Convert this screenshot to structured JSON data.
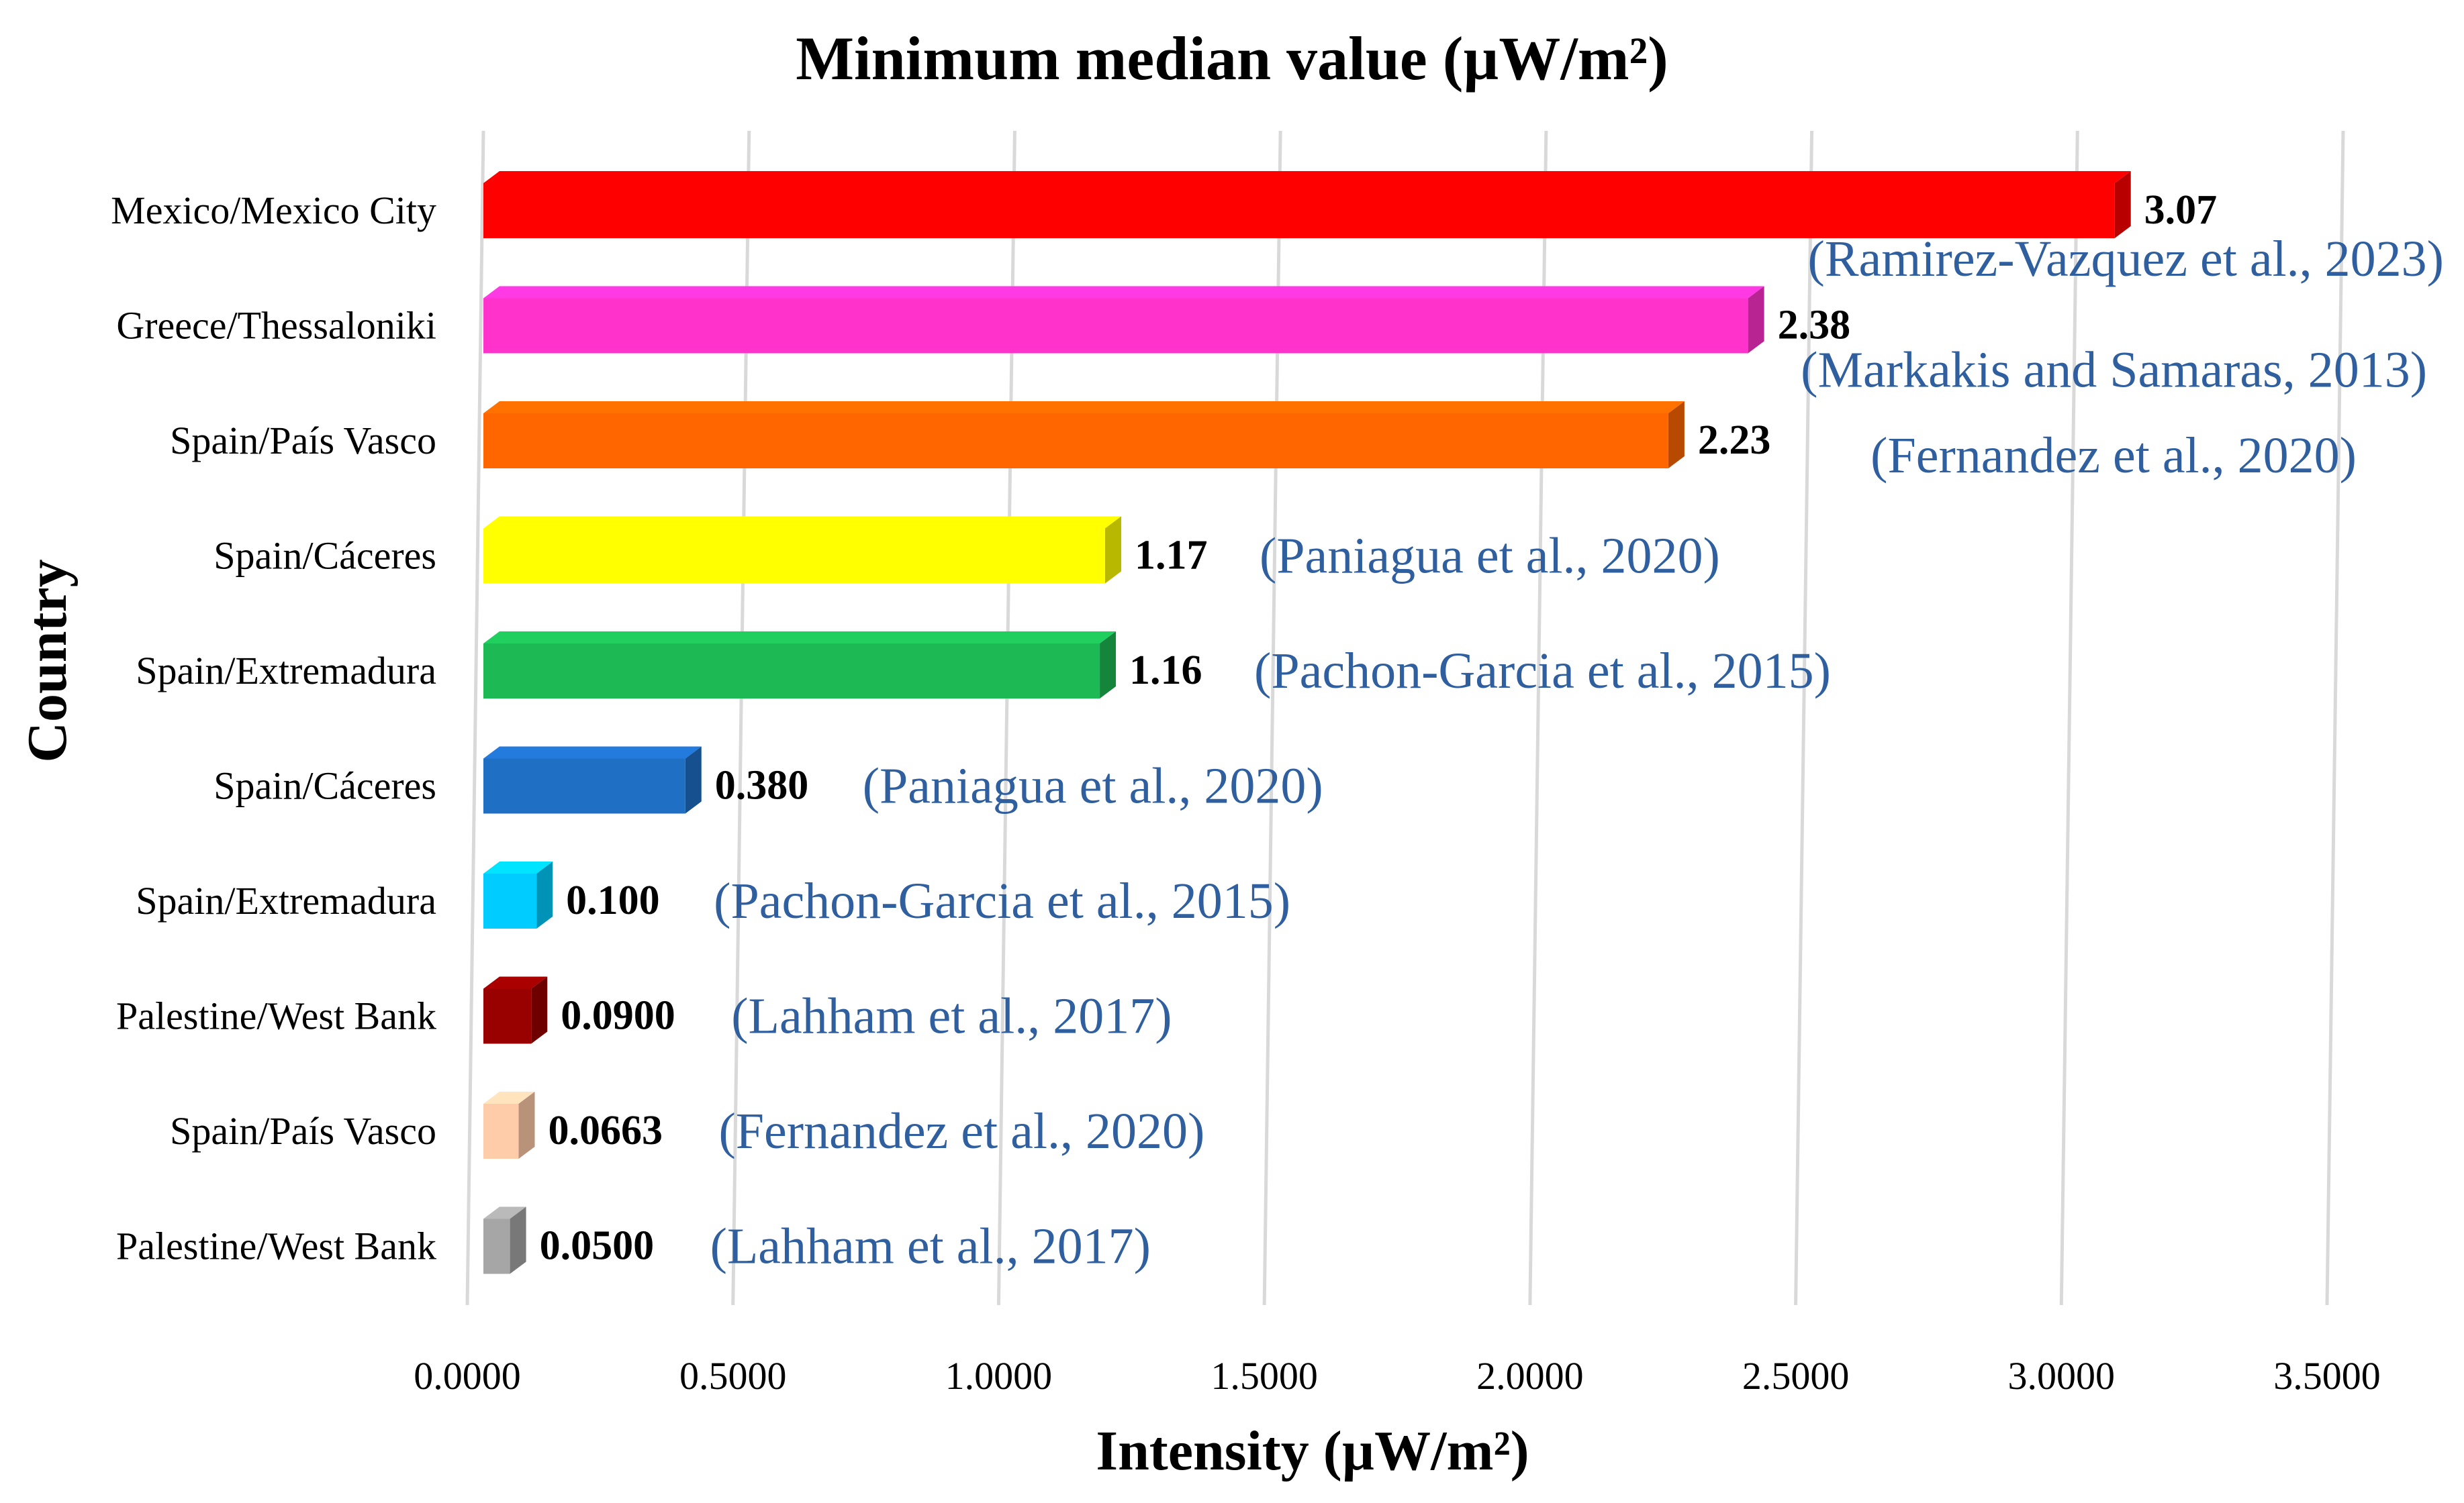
{
  "chart_data": {
    "type": "bar",
    "orientation": "horizontal",
    "title": "Minimum median value (µW/m²)",
    "xlabel": "Intensity (µW/m²)",
    "ylabel": "Country",
    "xlim": [
      0,
      3.5
    ],
    "xticks": [
      "0.0000",
      "0.5000",
      "1.0000",
      "1.5000",
      "2.0000",
      "2.5000",
      "3.0000",
      "3.5000"
    ],
    "grid": true,
    "legend": "none",
    "bars": [
      {
        "category": "Mexico/Mexico City",
        "value": 3.07,
        "value_label": "3.07",
        "annotation": "(Ramirez-Vazquez  et al., 2023)",
        "color": "#ff0000"
      },
      {
        "category": "Greece/Thessaloniki",
        "value": 2.38,
        "value_label": "2.38",
        "annotation": "(Markakis and Samaras, 2013)",
        "color": "#ff33cc"
      },
      {
        "category": "Spain/País Vasco",
        "value": 2.23,
        "value_label": "2.23",
        "annotation": "(Fernandez  et al., 2020)",
        "color": "#ff6600"
      },
      {
        "category": "Spain/Cáceres",
        "value": 1.17,
        "value_label": "1.17",
        "annotation": "(Paniagua et al., 2020)",
        "color": "#ffff00"
      },
      {
        "category": "Spain/Extremadura",
        "value": 1.16,
        "value_label": "1.16",
        "annotation": "(Pachon-Garcia et al., 2015)",
        "color": "#1db954"
      },
      {
        "category": "Spain/Cáceres",
        "value": 0.38,
        "value_label": "0.380",
        "annotation": "(Paniagua et al., 2020)",
        "color": "#1f6fc5"
      },
      {
        "category": "Spain/Extremadura",
        "value": 0.1,
        "value_label": "0.100",
        "annotation": "(Pachon-Garcia et al., 2015)",
        "color": "#00ccff"
      },
      {
        "category": "Palestine/West Bank",
        "value": 0.09,
        "value_label": "0.0900",
        "annotation": "(Lahham  et al., 2017)",
        "color": "#990000"
      },
      {
        "category": "Spain/País Vasco",
        "value": 0.0663,
        "value_label": "0.0663",
        "annotation": "(Fernandez  et al., 2020)",
        "color": "#ffccaa"
      },
      {
        "category": "Palestine/West Bank",
        "value": 0.05,
        "value_label": "0.0500",
        "annotation": "(Lahham  et al., 2017)",
        "color": "#a6a6a6"
      }
    ]
  }
}
